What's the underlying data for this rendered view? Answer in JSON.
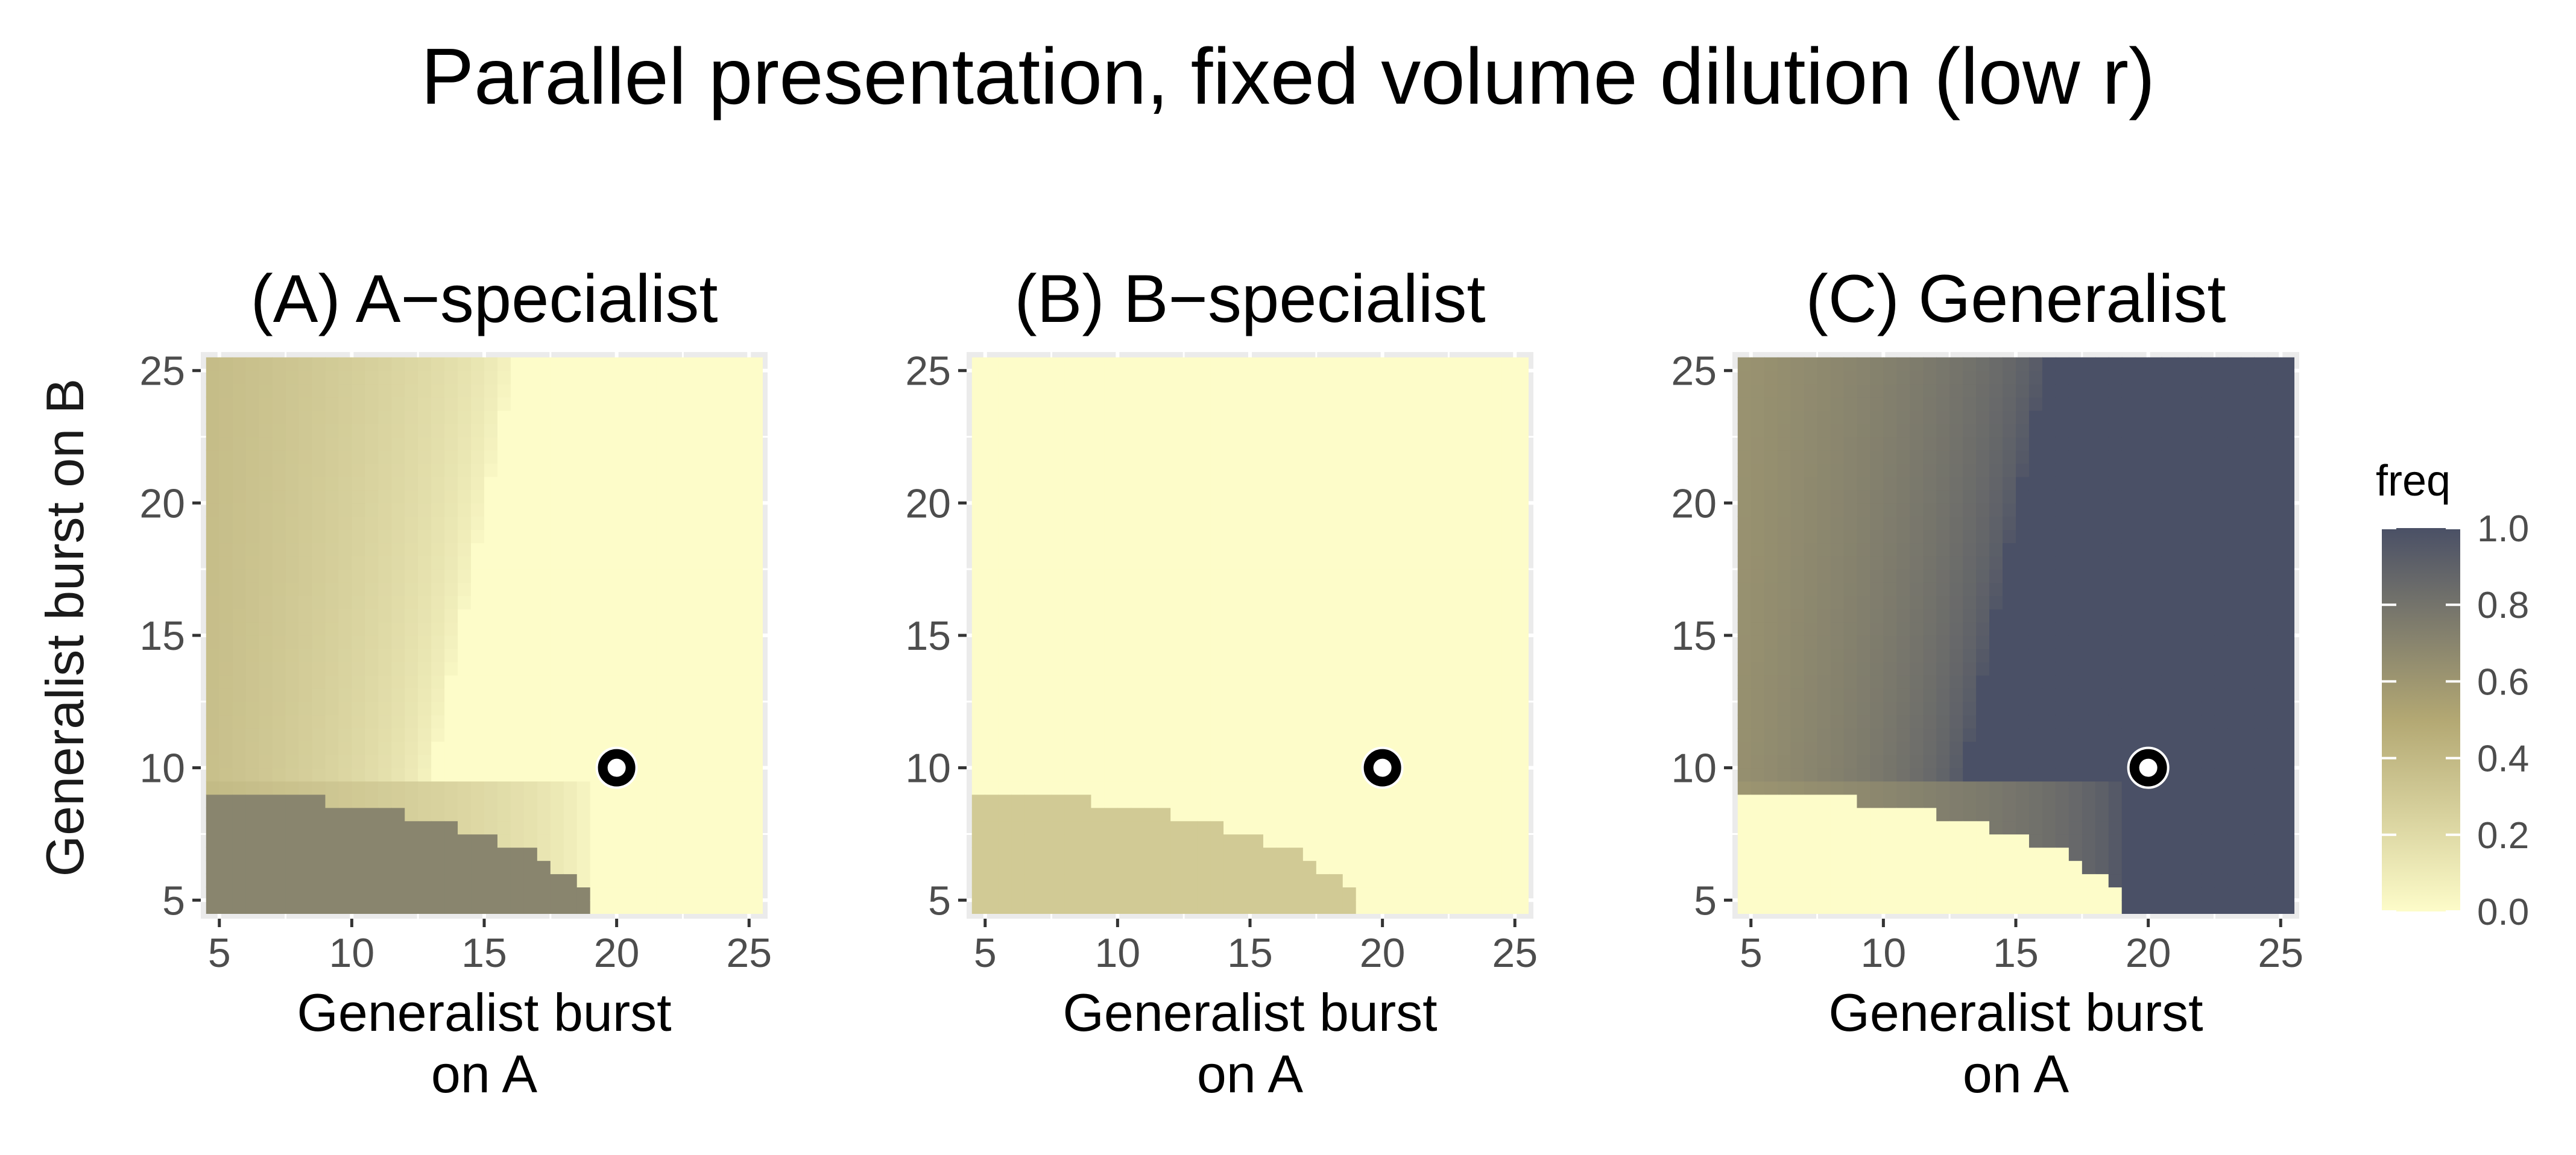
{
  "title": "Parallel presentation, fixed volume dilution (low r)",
  "ylabel": "Generalist burst on B",
  "xlabel": [
    "Generalist burst",
    "on A"
  ],
  "legend": {
    "title": "freq",
    "ticks": [
      "0.0",
      "0.2",
      "0.4",
      "0.6",
      "0.8",
      "1.0"
    ],
    "colors": {
      "low": "#fdfcc9",
      "mid": "#b3a873",
      "high": "#4a5066"
    }
  },
  "chart_data": [
    {
      "type": "heatmap",
      "title": "(A) A−specialist",
      "xlabel": "Generalist burst on A",
      "ylabel": "Generalist burst on B",
      "xlim": [
        4.3,
        25.7
      ],
      "ylim": [
        4.3,
        25.7
      ],
      "xticks": [
        5,
        10,
        15,
        20,
        25
      ],
      "yticks": [
        5,
        10,
        15,
        20,
        25
      ],
      "grid": true,
      "legend": "right",
      "model": "A",
      "marker": {
        "x": 20,
        "y": 10,
        "symbol": "open circle"
      },
      "description_values": {
        "region_low_burst_on_B_below_about_9.5": 0.7,
        "gradient_left_region_max": 0.45,
        "region_right_of_boundary": 0.0
      }
    },
    {
      "type": "heatmap",
      "title": "(B) B−specialist",
      "xlabel": "Generalist burst on A",
      "ylabel": "Generalist burst on B",
      "xlim": [
        4.3,
        25.7
      ],
      "ylim": [
        4.3,
        25.7
      ],
      "xticks": [
        5,
        10,
        15,
        20,
        25
      ],
      "yticks": [
        5,
        10,
        15,
        20,
        25
      ],
      "grid": true,
      "legend": "right",
      "model": "B",
      "marker": {
        "x": 20,
        "y": 10,
        "symbol": "open circle"
      },
      "description_values": {
        "region_low_burst_on_B_below_about_9.5": 0.3,
        "elsewhere": 0.0
      }
    },
    {
      "type": "heatmap",
      "title": "(C) Generalist",
      "xlabel": "Generalist burst on A",
      "ylabel": "Generalist burst on B",
      "xlim": [
        4.3,
        25.7
      ],
      "ylim": [
        4.3,
        25.7
      ],
      "xticks": [
        5,
        10,
        15,
        20,
        25
      ],
      "yticks": [
        5,
        10,
        15,
        20,
        25
      ],
      "grid": true,
      "legend": "right",
      "model": "C",
      "marker": {
        "x": 20,
        "y": 10,
        "symbol": "open circle"
      },
      "description_values": {
        "region_low_burst_on_B_below_about_9.5": 0.0,
        "gradient_left_region_min": 0.55,
        "region_right_of_boundary": 1.0
      }
    }
  ]
}
